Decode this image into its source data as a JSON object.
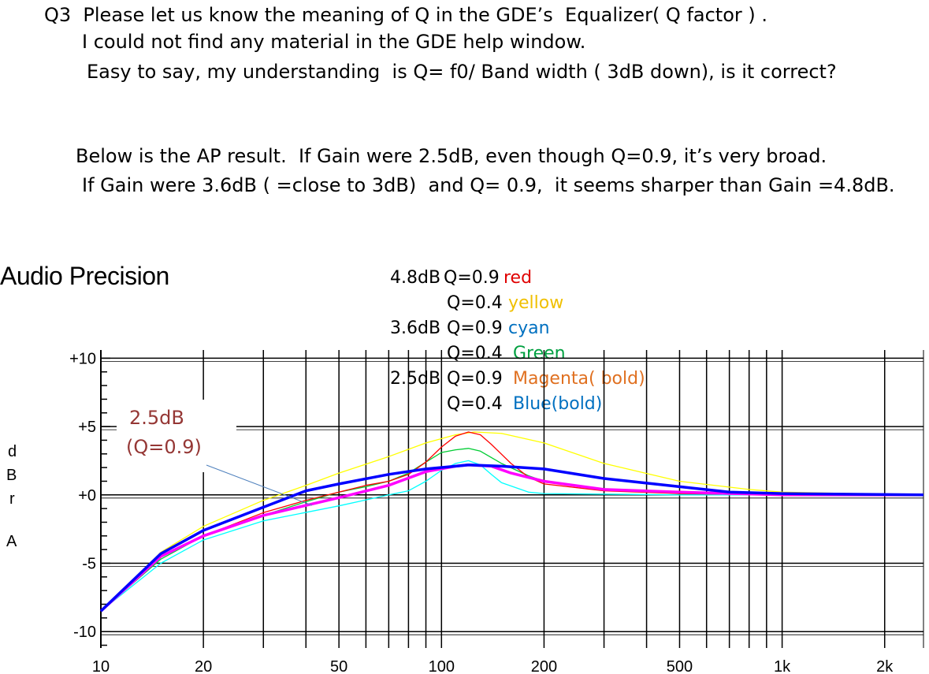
{
  "text": {
    "line1": "Q3  Please let us know the meaning of Q in the GDE’s  Equalizer( Q factor ) .",
    "line2": "I could not find any material in the GDE help window.",
    "line3": "Easy to say, my understanding  is Q= f0/ Band width ( 3dB down), is it correct?",
    "line4": "Below is the AP result.  If Gain were 2.5dB, even though Q=0.9, it’s very broad.",
    "line5": "If Gain were 3.6dB ( =close to 3dB)  and Q= 0.9,  it seems sharper than Gain =4.8dB."
  },
  "brand": "Audio Precision",
  "legend": [
    {
      "gain": "4.8dB",
      "q": "Q=0.9",
      "color_name": "red",
      "text_color": "#e00000"
    },
    {
      "gain": "",
      "q": "Q=0.4",
      "color_name": "yellow",
      "text_color": "#f0c000"
    },
    {
      "gain": "3.6dB",
      "q": "Q=0.9",
      "color_name": "cyan",
      "text_color": "#0070c0"
    },
    {
      "gain": "",
      "q": "Q=0.4",
      "color_name": "Green",
      "text_color": "#00a040"
    },
    {
      "gain": "2.5dB",
      "q": "Q=0.9",
      "color_name": "Magenta( bold)",
      "text_color": "#e07020"
    },
    {
      "gain": "",
      "q": "Q=0.4",
      "color_name": "Blue(bold)",
      "text_color": "#0070c0"
    }
  ],
  "annotation": {
    "line1": "2.5dB",
    "line2": "(Q=0.9)",
    "color": "#953735"
  },
  "chart_data": {
    "type": "line",
    "ylabel": [
      "d",
      "B",
      "r",
      "",
      "A"
    ],
    "x_scale": "log",
    "xlim": [
      10,
      2600
    ],
    "ylim": [
      -11.2,
      10.6
    ],
    "x_ticks": [
      10,
      20,
      50,
      100,
      200,
      500,
      1000,
      2000
    ],
    "x_tick_labels": [
      "10",
      "20",
      "50",
      "100",
      "200",
      "500",
      "1k",
      "2k"
    ],
    "y_ticks": [
      10,
      5,
      0,
      -5,
      -10
    ],
    "y_tick_labels": [
      "+10",
      "+5",
      "+0",
      "-5",
      "-10"
    ],
    "series": [
      {
        "name": "4.8dB Q=0.9 red",
        "color": "#ff0000",
        "width": 1.3,
        "points": [
          [
            10,
            -8.5
          ],
          [
            15,
            -4.5
          ],
          [
            20,
            -3
          ],
          [
            30,
            -1.3
          ],
          [
            40,
            -0.4
          ],
          [
            50,
            0.2
          ],
          [
            60,
            0.7
          ],
          [
            70,
            1
          ],
          [
            80,
            1.5
          ],
          [
            90,
            2.4
          ],
          [
            100,
            3.5
          ],
          [
            110,
            4.3
          ],
          [
            120,
            4.6
          ],
          [
            130,
            4.4
          ],
          [
            140,
            3.7
          ],
          [
            160,
            2.3
          ],
          [
            180,
            1.3
          ],
          [
            200,
            0.8
          ],
          [
            300,
            0.3
          ],
          [
            500,
            0.1
          ],
          [
            1000,
            0
          ],
          [
            2600,
            0
          ]
        ]
      },
      {
        "name": "Q=0.4 yellow",
        "color": "#ffff00",
        "width": 1.3,
        "points": [
          [
            10,
            -8.5
          ],
          [
            15,
            -4.2
          ],
          [
            20,
            -2.3
          ],
          [
            30,
            -0.4
          ],
          [
            40,
            0.7
          ],
          [
            50,
            1.6
          ],
          [
            70,
            2.8
          ],
          [
            90,
            3.8
          ],
          [
            110,
            4.4
          ],
          [
            125,
            4.6
          ],
          [
            150,
            4.5
          ],
          [
            200,
            3.8
          ],
          [
            300,
            2.3
          ],
          [
            500,
            1
          ],
          [
            800,
            0.4
          ],
          [
            1000,
            0.2
          ],
          [
            2600,
            0
          ]
        ]
      },
      {
        "name": "3.6dB Q=0.9 cyan",
        "color": "#00ffff",
        "width": 1.3,
        "points": [
          [
            10,
            -8.5
          ],
          [
            15,
            -5
          ],
          [
            20,
            -3.3
          ],
          [
            30,
            -1.9
          ],
          [
            50,
            -0.8
          ],
          [
            70,
            0
          ],
          [
            80,
            0.3
          ],
          [
            90,
            1
          ],
          [
            100,
            1.8
          ],
          [
            110,
            2.3
          ],
          [
            120,
            2.5
          ],
          [
            130,
            2.2
          ],
          [
            140,
            1.5
          ],
          [
            150,
            0.9
          ],
          [
            180,
            0.2
          ],
          [
            200,
            0.1
          ],
          [
            500,
            0
          ],
          [
            2600,
            0
          ]
        ]
      },
      {
        "name": "Q=0.4 Green",
        "color": "#00cc33",
        "width": 1.3,
        "points": [
          [
            10,
            -8.5
          ],
          [
            15,
            -4.7
          ],
          [
            20,
            -3
          ],
          [
            30,
            -1.5
          ],
          [
            40,
            -0.5
          ],
          [
            50,
            0.2
          ],
          [
            60,
            0.6
          ],
          [
            70,
            1
          ],
          [
            80,
            1.6
          ],
          [
            90,
            2.4
          ],
          [
            100,
            3.1
          ],
          [
            110,
            3.3
          ],
          [
            120,
            3.4
          ],
          [
            130,
            3.2
          ],
          [
            150,
            2.3
          ],
          [
            180,
            1.4
          ],
          [
            200,
            1
          ],
          [
            300,
            0.4
          ],
          [
            500,
            0.1
          ],
          [
            2600,
            0
          ]
        ]
      },
      {
        "name": "2.5dB Q=0.9 Magenta",
        "color": "#ff00ff",
        "width": 3.5,
        "points": [
          [
            10,
            -8.5
          ],
          [
            15,
            -4.5
          ],
          [
            20,
            -3
          ],
          [
            30,
            -1.5
          ],
          [
            50,
            -0.2
          ],
          [
            70,
            0.7
          ],
          [
            90,
            1.7
          ],
          [
            110,
            2.1
          ],
          [
            120,
            2.2
          ],
          [
            140,
            2.1
          ],
          [
            160,
            1.6
          ],
          [
            200,
            1
          ],
          [
            300,
            0.4
          ],
          [
            500,
            0.2
          ],
          [
            1000,
            0
          ],
          [
            2600,
            0
          ]
        ]
      },
      {
        "name": "Q=0.4 Blue",
        "color": "#0000ff",
        "width": 3.5,
        "points": [
          [
            10,
            -8.5
          ],
          [
            15,
            -4.3
          ],
          [
            20,
            -2.6
          ],
          [
            30,
            -0.9
          ],
          [
            40,
            0.3
          ],
          [
            50,
            0.8
          ],
          [
            70,
            1.5
          ],
          [
            90,
            1.9
          ],
          [
            110,
            2.1
          ],
          [
            120,
            2.2
          ],
          [
            150,
            2.1
          ],
          [
            200,
            1.9
          ],
          [
            300,
            1.2
          ],
          [
            500,
            0.6
          ],
          [
            700,
            0.2
          ],
          [
            1000,
            0.1
          ],
          [
            2600,
            0
          ]
        ]
      }
    ]
  }
}
